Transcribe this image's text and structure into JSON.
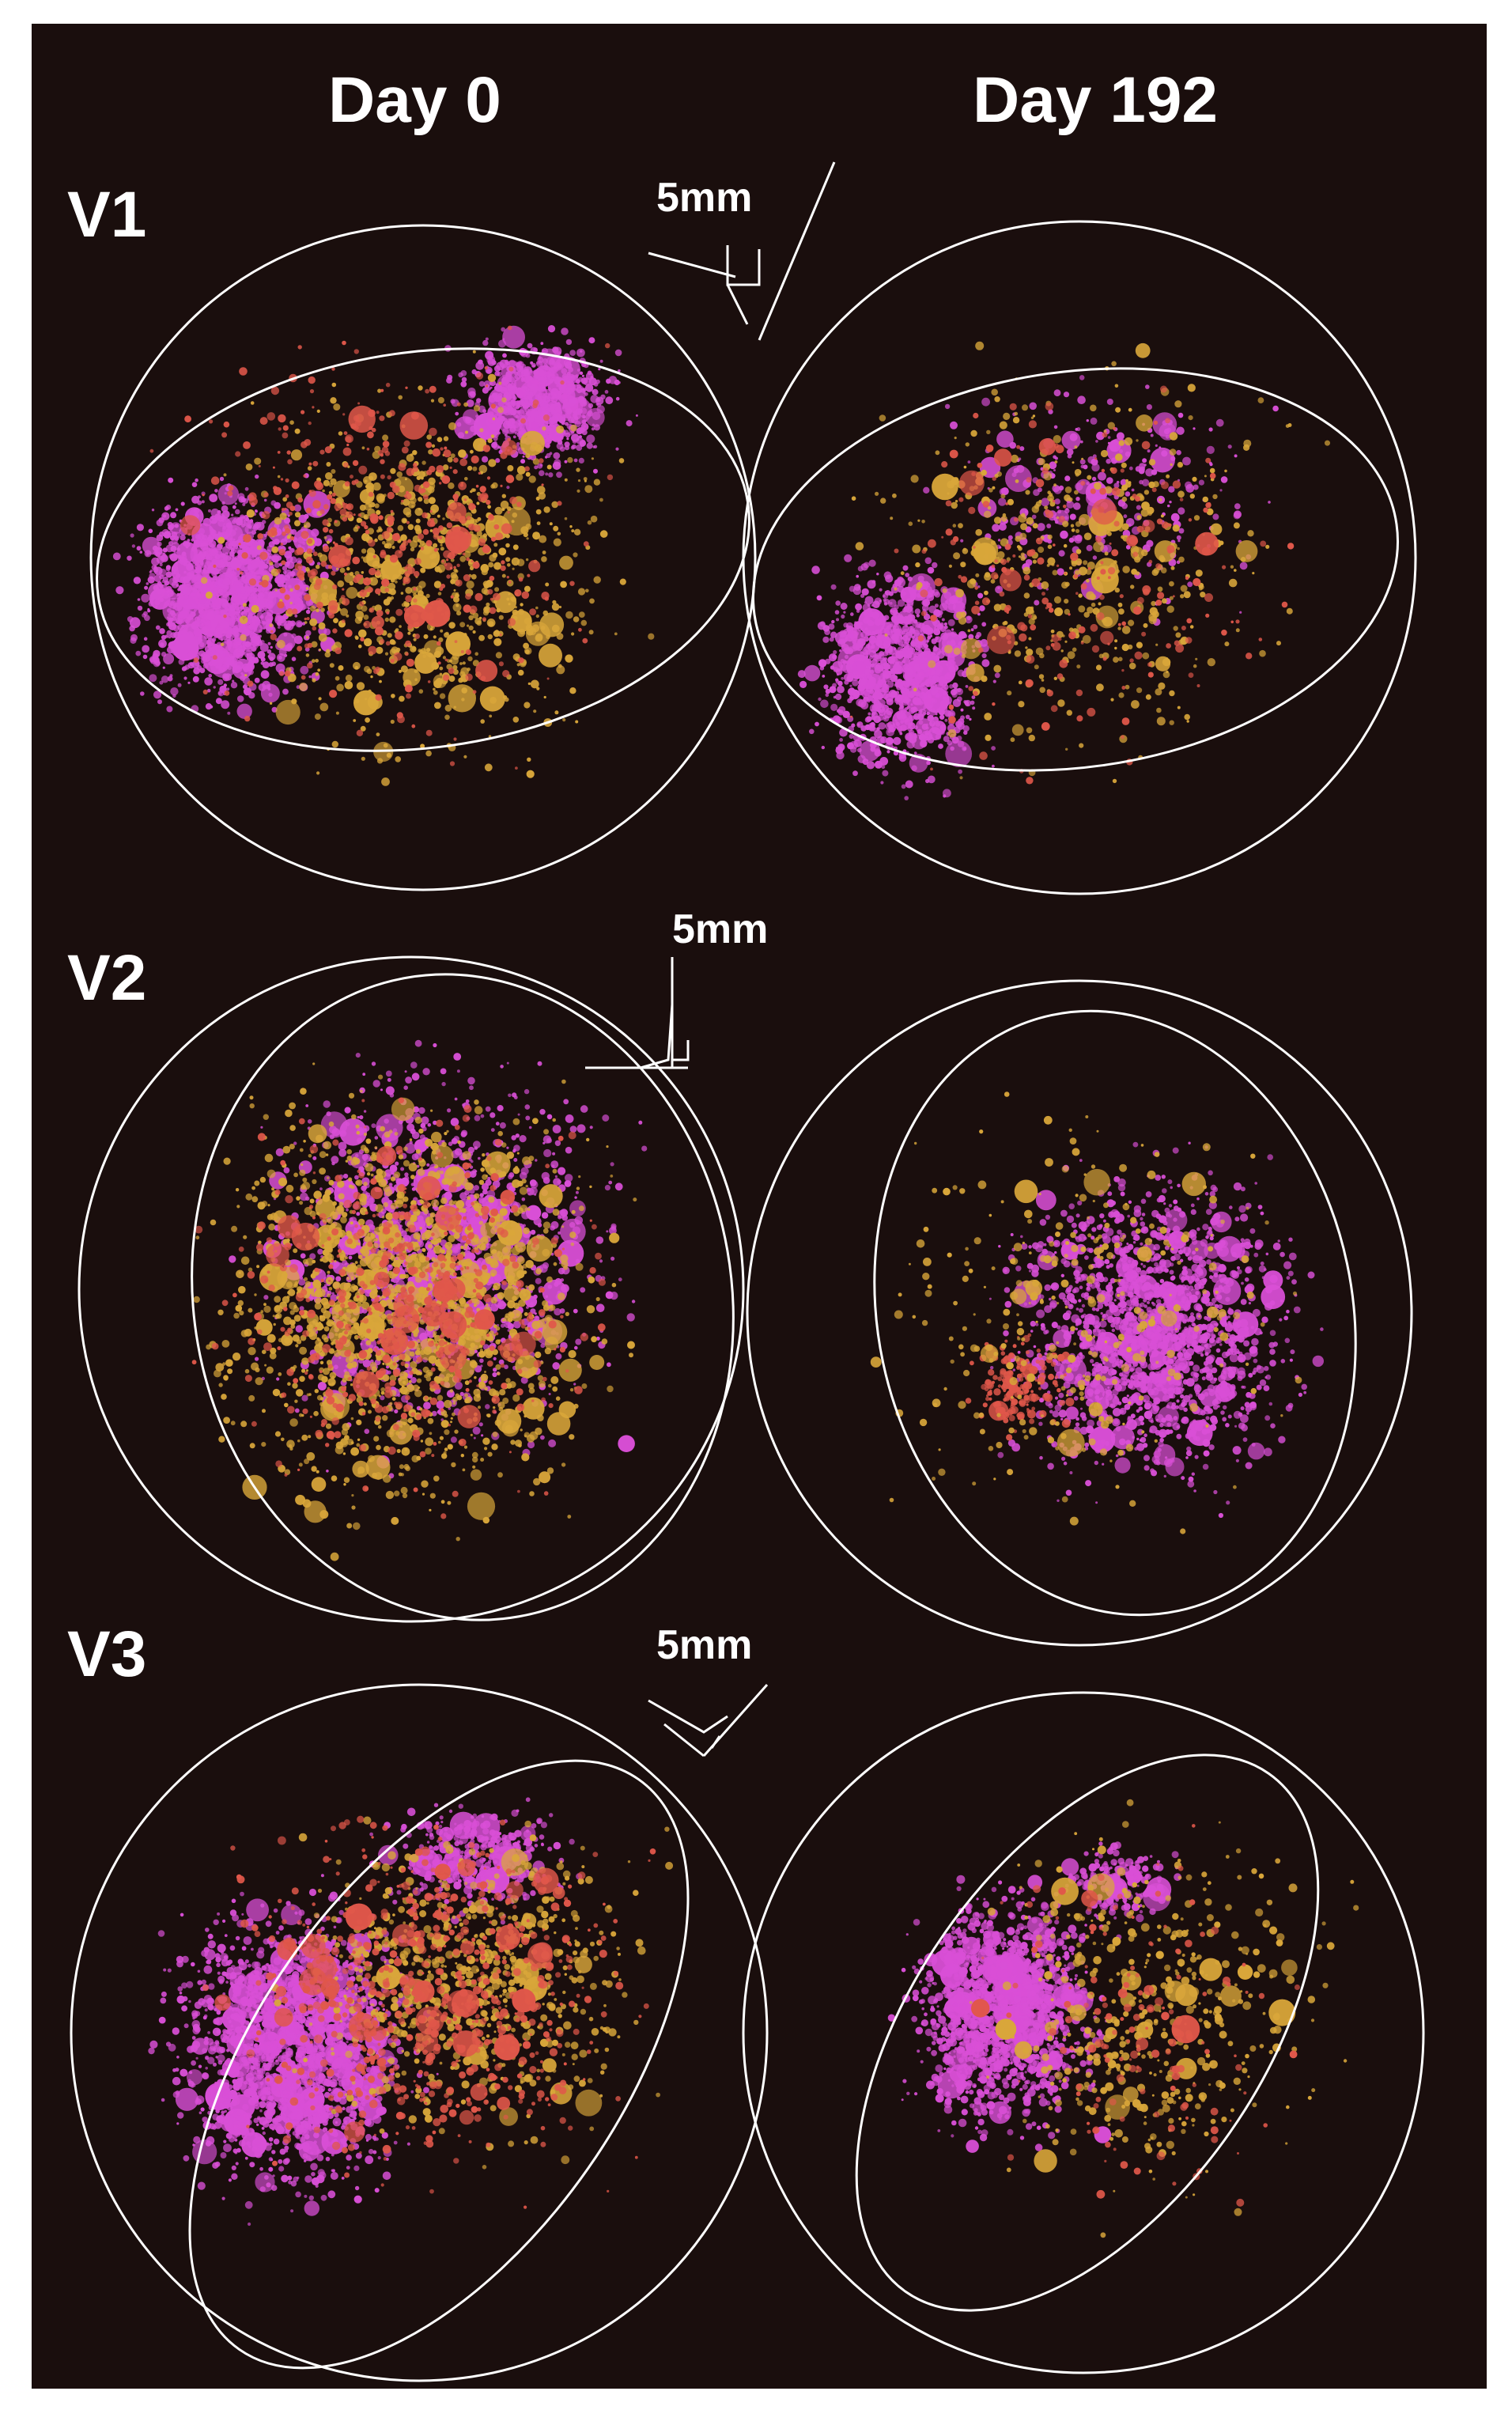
{
  "columns": [
    {
      "label": "Day 0"
    },
    {
      "label": "Day 192"
    }
  ],
  "rows": [
    {
      "label": "V1",
      "scale_label": "5mm"
    },
    {
      "label": "V2",
      "scale_label": "5mm"
    },
    {
      "label": "V3",
      "scale_label": "5mm"
    }
  ],
  "colors": {
    "background": "#1a0e0d",
    "phase_magenta": "#d94fd6",
    "phase_gold": "#d9a63a",
    "phase_red": "#e0574a",
    "outline": "#ffffff"
  }
}
